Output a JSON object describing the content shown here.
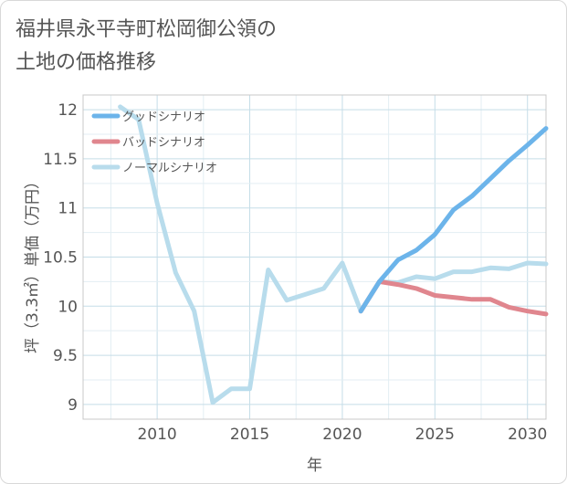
{
  "chart_data": {
    "type": "line",
    "title": "福井県永平寺町松岡御公領の\n土地の価格推移",
    "xlabel": "年",
    "ylabel": "坪（3.3㎡）単価（万円）",
    "xlim": [
      2006,
      2031
    ],
    "ylim": [
      8.85,
      12.15
    ],
    "x_ticks": [
      2010,
      2015,
      2020,
      2025,
      2030
    ],
    "y_ticks": [
      9,
      9.5,
      10,
      10.5,
      11,
      11.5,
      12
    ],
    "grid": true,
    "legend_position": "top-left",
    "series": [
      {
        "name": "グッドシナリオ",
        "color": "#6cb4ea",
        "x": [
          2021,
          2022,
          2023,
          2024,
          2025,
          2026,
          2027,
          2028,
          2029,
          2030,
          2031
        ],
        "y": [
          9.95,
          10.25,
          10.47,
          10.57,
          10.73,
          10.98,
          11.12,
          11.3,
          11.48,
          11.64,
          11.81
        ]
      },
      {
        "name": "バッドシナリオ",
        "color": "#e0868e",
        "x": [
          2021,
          2022,
          2023,
          2024,
          2025,
          2026,
          2027,
          2028,
          2029,
          2030,
          2031
        ],
        "y": [
          9.95,
          10.25,
          10.22,
          10.18,
          10.11,
          10.09,
          10.07,
          10.07,
          9.99,
          9.95,
          9.92
        ]
      },
      {
        "name": "ノーマルシナリオ",
        "color": "#b8dcec",
        "x": [
          2008,
          2009,
          2010,
          2011,
          2012,
          2013,
          2014,
          2015,
          2016,
          2017,
          2018,
          2019,
          2020,
          2021,
          2022,
          2023,
          2024,
          2025,
          2026,
          2027,
          2028,
          2029,
          2030,
          2031
        ],
        "y": [
          12.03,
          11.9,
          11.05,
          10.34,
          9.95,
          9.02,
          9.16,
          9.16,
          10.37,
          10.06,
          10.12,
          10.18,
          10.44,
          9.95,
          10.25,
          10.24,
          10.3,
          10.28,
          10.35,
          10.35,
          10.39,
          10.38,
          10.44,
          10.43
        ]
      }
    ]
  }
}
